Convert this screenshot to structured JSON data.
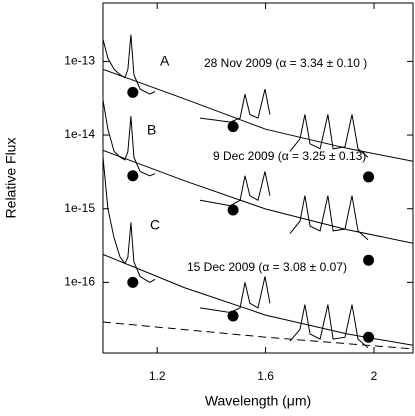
{
  "chart_data": {
    "type": "line",
    "ylog": true,
    "xlabel": "Wavelength (μm)",
    "ylabel": "Relative Flux",
    "xlim": [
      1.0,
      2.144
    ],
    "xticks": [
      1.2,
      1.6,
      2.0
    ],
    "ylim": [
      1.1e-17,
      6.2e-13
    ],
    "yticks": [
      1e-13,
      1e-14,
      1e-15,
      1e-16
    ],
    "annotations": [
      "A",
      "B",
      "C",
      "28 Nov 2009 (α = 3.34 ± 0.10 )",
      "9 Dec 2009 (α = 3.25 ± 0.13)",
      "15 Dec 2009 (α = 3.08 ± 0.07)"
    ],
    "series": [
      {
        "type": "line",
        "color": "#000",
        "x": [
          1.0,
          1.018,
          1.041,
          1.063,
          1.081,
          1.092,
          1.103,
          1.114,
          1.137,
          1.173,
          1.192,
          1.28,
          1.358,
          1.413,
          1.469,
          1.506,
          1.524,
          1.542,
          1.572,
          1.598,
          1.616,
          1.65,
          1.69,
          1.727,
          1.745,
          1.764,
          1.801,
          1.83,
          1.849,
          1.893,
          1.919,
          1.941,
          1.978
        ],
        "values": [
          2e-13,
          1.1e-13,
          7.8e-14,
          6.6e-14,
          6e-14,
          7.8e-14,
          2.3e-13,
          6.6e-14,
          4.2e-14,
          3.6e-14,
          3.9e-14,
          null,
          1.7e-14,
          1.6e-14,
          1.5e-14,
          1.7e-14,
          3.6e-14,
          1.9e-14,
          1.7e-14,
          4.2e-14,
          1.9e-14,
          null,
          6e-15,
          8.9e-15,
          1.9e-14,
          7.6e-15,
          6.5e-15,
          1.9e-14,
          6.5e-15,
          6.9e-15,
          1.9e-14,
          6.5e-15,
          5e-15
        ]
      },
      {
        "type": "line",
        "color": "#000",
        "x": [
          1.0,
          1.018,
          1.041,
          1.063,
          1.081,
          1.092,
          1.103,
          1.114,
          1.137,
          1.173,
          1.192,
          1.28,
          1.358,
          1.413,
          1.469,
          1.506,
          1.524,
          1.542,
          1.572,
          1.598,
          1.616,
          1.65,
          1.69,
          1.727,
          1.745,
          1.764,
          1.801,
          1.83,
          1.849,
          1.893,
          1.919,
          1.941,
          1.978
        ],
        "values": [
          3e-14,
          1.2e-14,
          6e-15,
          5e-15,
          4.6e-15,
          6e-15,
          1.8e-14,
          5e-15,
          3.2e-15,
          2.8e-15,
          3e-15,
          null,
          1.3e-15,
          1.2e-15,
          1.1e-15,
          1.3e-15,
          2.8e-15,
          1.5e-15,
          1.3e-15,
          3.2e-15,
          1.5e-15,
          null,
          4.6e-16,
          6.8e-16,
          1.5e-15,
          5.8e-16,
          5e-16,
          1.5e-15,
          5e-16,
          5.3e-16,
          1.5e-15,
          5e-16,
          3.8e-16
        ]
      },
      {
        "type": "line",
        "color": "#000",
        "x": [
          1.0,
          1.018,
          1.041,
          1.063,
          1.081,
          1.092,
          1.103,
          1.114,
          1.137,
          1.173,
          1.192,
          1.28,
          1.358,
          1.413,
          1.469,
          1.506,
          1.524,
          1.542,
          1.572,
          1.598,
          1.616,
          1.65,
          1.69,
          1.727,
          1.745,
          1.764,
          1.801,
          1.83,
          1.849,
          1.893,
          1.919,
          1.941,
          1.978
        ],
        "values": [
          5e-15,
          1e-15,
          4e-16,
          2.2e-16,
          1.8e-16,
          2.2e-16,
          6.5e-16,
          1.9e-16,
          1.2e-16,
          1e-16,
          1.1e-16,
          null,
          4.5e-17,
          4.2e-17,
          3.9e-17,
          4.5e-17,
          1e-16,
          5.2e-17,
          4.5e-17,
          1.2e-16,
          5.2e-17,
          null,
          1.6e-17,
          2.3e-17,
          5e-17,
          2e-17,
          1.7e-17,
          5e-17,
          1.7e-17,
          1.8e-17,
          5e-17,
          1.7e-17,
          1.3e-17
        ]
      },
      {
        "type": "line",
        "color": "#000",
        "x": [
          1.0,
          1.3,
          1.6,
          1.9,
          2.144
        ],
        "values": [
          7.8e-14,
          3.1e-14,
          1.2e-14,
          6.6e-15,
          4.4e-15
        ]
      },
      {
        "type": "line",
        "color": "#000",
        "x": [
          1.0,
          1.3,
          1.6,
          1.9,
          2.144
        ],
        "values": [
          6.2e-15,
          2.4e-15,
          9.9e-16,
          5.2e-16,
          3.4e-16
        ]
      },
      {
        "type": "line",
        "color": "#000",
        "x": [
          1.0,
          1.3,
          1.6,
          1.9,
          2.144
        ],
        "values": [
          2.4e-16,
          8.5e-17,
          3.6e-17,
          2e-17,
          1.4e-17
        ]
      },
      {
        "type": "line",
        "color": "#000",
        "dashed": true,
        "x": [
          1.0,
          1.6,
          2.144
        ],
        "values": [
          2.9e-17,
          1.8e-17,
          1.25e-17
        ]
      },
      {
        "type": "scatter",
        "color": "#000",
        "x": [
          1.11,
          1.48,
          1.98
        ],
        "values": [
          3.8e-14,
          1.3e-14,
          2.7e-15
        ]
      },
      {
        "type": "scatter",
        "color": "#000",
        "x": [
          1.11,
          1.48,
          1.98
        ],
        "values": [
          2.8e-15,
          9.6e-16,
          2e-16
        ]
      },
      {
        "type": "scatter",
        "color": "#000",
        "x": [
          1.11,
          1.48,
          1.98
        ],
        "values": [
          1e-16,
          3.5e-17,
          1.8e-17
        ]
      }
    ]
  }
}
